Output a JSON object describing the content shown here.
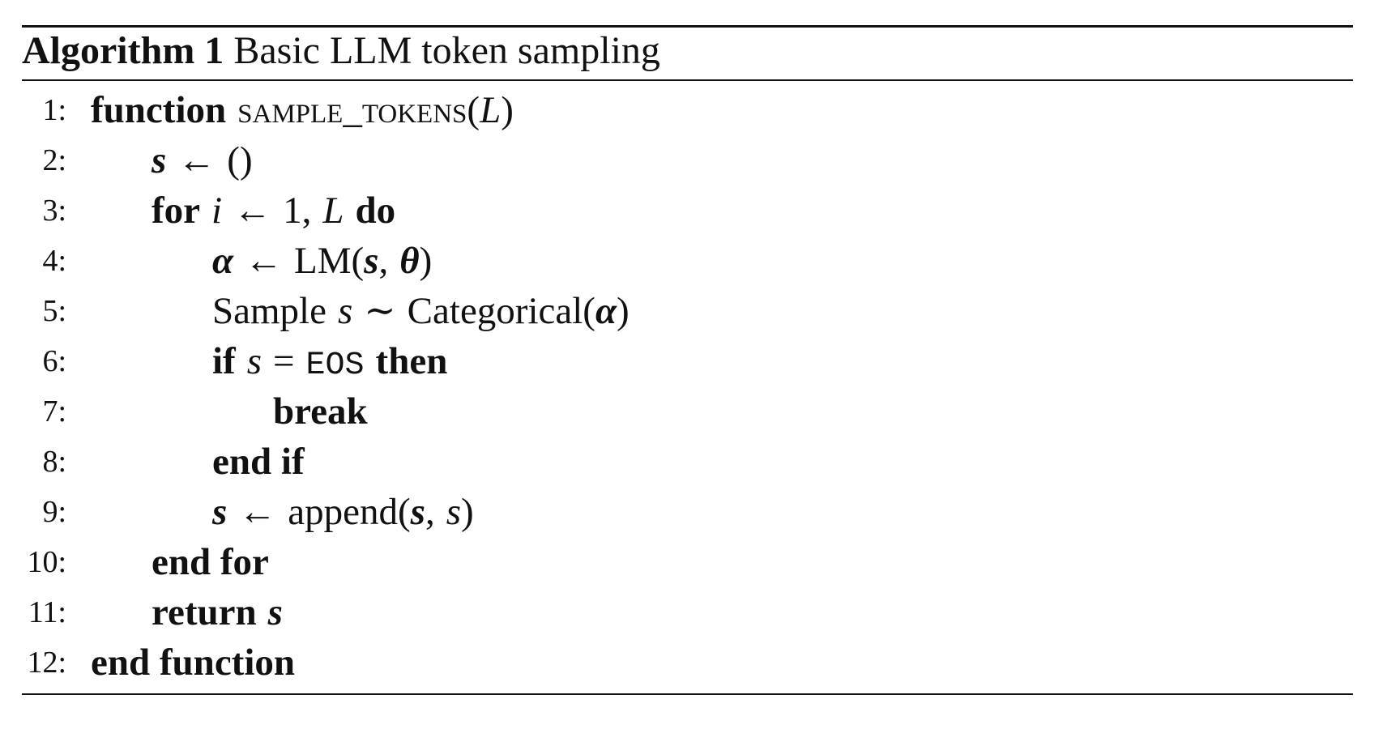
{
  "algorithm": {
    "label": "Algorithm 1",
    "title": "Basic LLM token sampling"
  },
  "lines": [
    {
      "num": "1:",
      "kw1": "function",
      "fname": "sample_tokens",
      "open": "(",
      "arg": "L",
      "close": ")"
    },
    {
      "num": "2:",
      "var": "s",
      "arrow": "←",
      "rhs": "()"
    },
    {
      "num": "3:",
      "kw1": "for",
      "var": "i",
      "arrow": "←",
      "start": "1,",
      "end": "L",
      "kw2": "do"
    },
    {
      "num": "4:",
      "var": "α",
      "arrow": "←",
      "fn": "LM(",
      "arg1": "s",
      "comma": ",",
      "arg2": "θ",
      "close": ")"
    },
    {
      "num": "5:",
      "word": "Sample",
      "var": "s",
      "tilde": "∼",
      "dist": "Categorical(",
      "param": "α",
      "close": ")"
    },
    {
      "num": "6:",
      "kw1": "if",
      "var": "s",
      "eq": "=",
      "token": "EOS",
      "kw2": "then"
    },
    {
      "num": "7:",
      "kw1": "break"
    },
    {
      "num": "8:",
      "kw1": "end if"
    },
    {
      "num": "9:",
      "var": "s",
      "arrow": "←",
      "fn": "append(",
      "arg1": "s",
      "comma": ",",
      "arg2": "s",
      "close": ")"
    },
    {
      "num": "10:",
      "kw1": "end for"
    },
    {
      "num": "11:",
      "kw1": "return",
      "var": "s"
    },
    {
      "num": "12:",
      "kw1": "end function"
    }
  ]
}
